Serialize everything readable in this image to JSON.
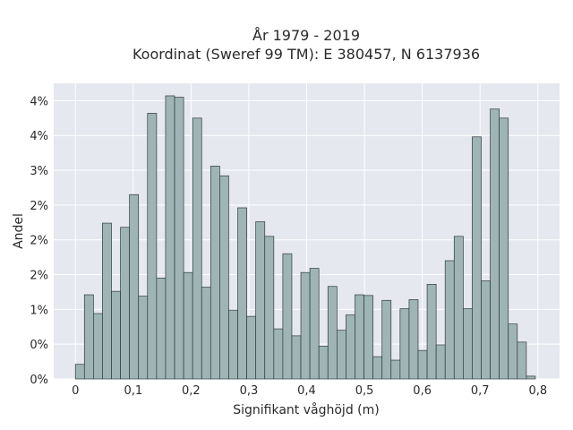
{
  "chart_data": {
    "type": "bar",
    "title": "År 1979 - 2019",
    "subtitle": "Koordinat (Sweref 99 TM): E 380457, N 6137936",
    "xlabel": "Signifikant våghöjd (m)",
    "ylabel": "Andel",
    "xlim": [
      -0.0375,
      0.8375
    ],
    "ylim": [
      0,
      0.0425
    ],
    "xticks": [
      0,
      0.1,
      0.2,
      0.3,
      0.4,
      0.5,
      0.6,
      0.7,
      0.8
    ],
    "xtick_labels": [
      "0",
      "0,1",
      "0,2",
      "0,3",
      "0,4",
      "0,5",
      "0,6",
      "0,7",
      "0,8"
    ],
    "yticks": [
      0,
      0.005,
      0.01,
      0.015,
      0.02,
      0.025,
      0.03,
      0.035,
      0.04
    ],
    "ytick_labels": [
      "0%",
      "0%",
      "1%",
      "2%",
      "2%",
      "2%",
      "3%",
      "4%",
      "4%"
    ],
    "grid": true,
    "bin_width": 0.0156,
    "bin_start": 0.0,
    "values": [
      0.0021,
      0.0121,
      0.0094,
      0.0224,
      0.0126,
      0.0218,
      0.0265,
      0.0119,
      0.0382,
      0.0145,
      0.0407,
      0.0405,
      0.0153,
      0.0375,
      0.0132,
      0.0306,
      0.0292,
      0.0099,
      0.0246,
      0.009,
      0.0226,
      0.0205,
      0.0072,
      0.018,
      0.0062,
      0.0153,
      0.0159,
      0.0047,
      0.0133,
      0.007,
      0.0092,
      0.0121,
      0.012,
      0.0032,
      0.0113,
      0.0027,
      0.0101,
      0.0114,
      0.0041,
      0.0136,
      0.0049,
      0.017,
      0.0205,
      0.0101,
      0.0348,
      0.0141,
      0.0388,
      0.0375,
      0.0079,
      0.0053,
      0.0004
    ],
    "colors": {
      "bar_fill": "#9fb5b5",
      "bar_stroke": "#2f3a3a",
      "plot_background": "#e6e8ef",
      "grid": "#ffffff"
    }
  }
}
